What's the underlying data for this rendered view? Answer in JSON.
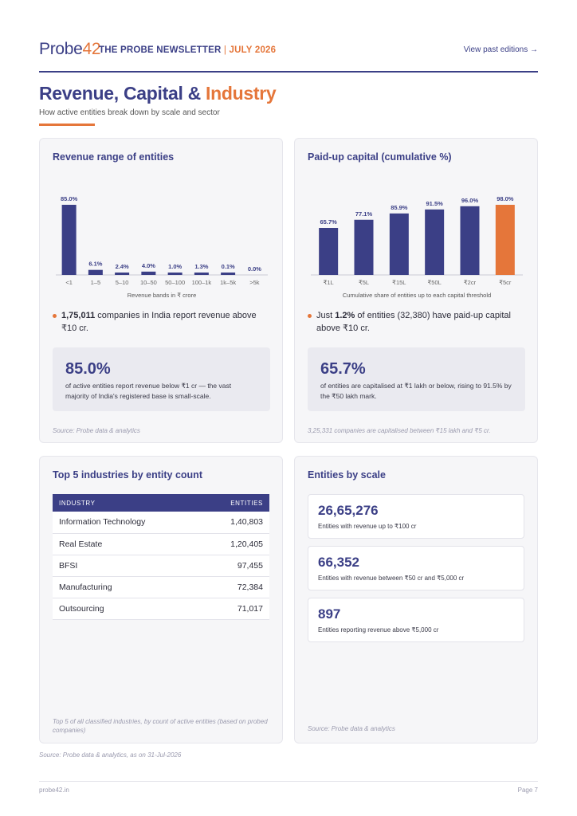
{
  "header": {
    "logo_text": "Probe",
    "logo_num": "42",
    "newsletter": "THE PROBE NEWSLETTER",
    "separator": "|",
    "month": "JULY 2026",
    "view_past": "View past editions →"
  },
  "page": {
    "title_main": "Revenue, Capital & ",
    "title_accent": "Industry",
    "subtitle": "How active entities break down by scale and sector"
  },
  "revenue_card": {
    "title": "Revenue range of entities",
    "bullet_bold": "1,75,011",
    "bullet_rest": " companies in India report revenue above ₹10 cr.",
    "stat_value": "85.0%",
    "stat_desc": "of active entities report revenue below ₹1 cr — the vast majority of India's registered base is small-scale.",
    "source": "Source: Probe data & analytics"
  },
  "capital_card": {
    "title": "Paid-up capital (cumulative %)",
    "bullet_pre": "Just ",
    "bullet_bold": "1.2%",
    "bullet_rest": " of entities (32,380) have paid-up capital above ₹10 cr.",
    "stat_value": "65.7%",
    "stat_desc": "of entities are capitalised at ₹1 lakh or below, rising to 91.5% by the ₹50 lakh mark.",
    "source": "3,25,331 companies are capitalised between ₹15 lakh and ₹5 cr."
  },
  "industry_card": {
    "title": "Top 5 industries by entity count",
    "col_industry": "INDUSTRY",
    "col_entities": "ENTITIES",
    "rows": [
      {
        "name": "Information Technology",
        "count": "1,40,803"
      },
      {
        "name": "Real Estate",
        "count": "1,20,405"
      },
      {
        "name": "BFSI",
        "count": "97,455"
      },
      {
        "name": "Manufacturing",
        "count": "72,384"
      },
      {
        "name": "Outsourcing",
        "count": "71,017"
      }
    ],
    "source": "Top 5 of all classified industries, by count of active entities (based on probed companies)"
  },
  "scale_card": {
    "title": "Entities by scale",
    "items": [
      {
        "value": "26,65,276",
        "label": "Entities with revenue up to ₹100 cr"
      },
      {
        "value": "66,352",
        "label": "Entities with revenue between ₹50 cr and ₹5,000 cr"
      },
      {
        "value": "897",
        "label": "Entities reporting revenue above ₹5,000 cr"
      }
    ],
    "source": "Source: Probe data & analytics"
  },
  "footer": {
    "source": "Source: Probe data & analytics, as on 31-Jul-2026",
    "site": "probe42.in",
    "page": "Page 7"
  },
  "colors": {
    "navy": "#3b3f86",
    "orange": "#e5763a"
  },
  "chart_data": [
    {
      "type": "bar",
      "title": "Revenue range of entities",
      "xlabel": "Revenue bands in ₹ crore",
      "categories": [
        "<1",
        "1–5",
        "5–10",
        "10–50",
        "50–100",
        "100–1k",
        "1k–5k",
        ">5k"
      ],
      "values": [
        85.0,
        6.1,
        2.4,
        4.0,
        1.0,
        1.3,
        0.1,
        0.0
      ],
      "labels": [
        "85.0%",
        "6.1%",
        "2.4%",
        "4.0%",
        "1.0%",
        "1.3%",
        "0.1%",
        "0.0%"
      ],
      "ylim": [
        0,
        85
      ]
    },
    {
      "type": "bar",
      "title": "Paid-up capital (cumulative %)",
      "xlabel": "Cumulative share of entities up to each capital threshold",
      "categories": [
        "₹1L",
        "₹5L",
        "₹15L",
        "₹50L",
        "₹2cr",
        "₹5cr"
      ],
      "values": [
        65.7,
        77.1,
        85.9,
        91.5,
        96.0,
        98.0
      ],
      "labels": [
        "65.7%",
        "77.1%",
        "85.9%",
        "91.5%",
        "96.0%",
        "98.0%"
      ],
      "highlight_index": 5,
      "ylim": [
        0,
        98
      ]
    }
  ]
}
